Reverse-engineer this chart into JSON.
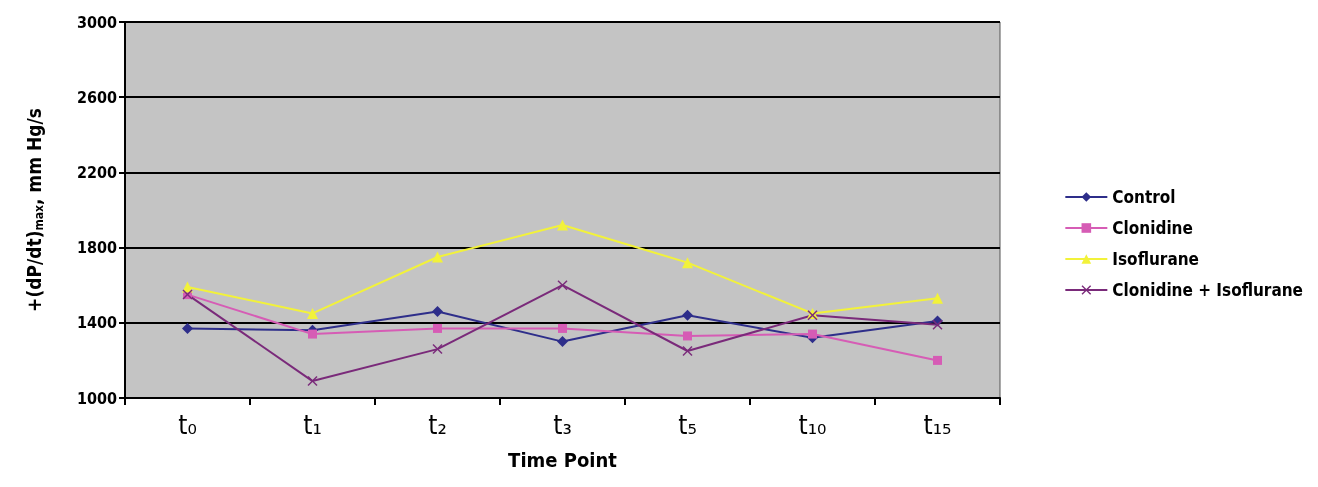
{
  "chart_data": {
    "type": "line",
    "xlabel": "Time Point",
    "ylabel": "+(dP/dt)$_{max}$, mm Hg/s",
    "categories": [
      "t₀",
      "t₁",
      "t₂",
      "t₃",
      "t₅",
      "t₁₀",
      "t₁₅"
    ],
    "series": [
      {
        "name": "Control",
        "color": "#2e2e8a",
        "marker": "diamond",
        "values": [
          1370,
          1360,
          1460,
          1300,
          1440,
          1320,
          1410
        ]
      },
      {
        "name": "Clonidine",
        "color": "#d65cb5",
        "marker": "square",
        "values": [
          1550,
          1340,
          1370,
          1370,
          1330,
          1340,
          1200
        ]
      },
      {
        "name": "Isoflurane",
        "color": "#f2f23a",
        "marker": "triangle",
        "values": [
          1590,
          1450,
          1750,
          1920,
          1720,
          1450,
          1530
        ]
      },
      {
        "name": "Clonidine + Isoflurane",
        "color": "#7a2a7a",
        "marker": "cross",
        "values": [
          1550,
          1090,
          1260,
          1600,
          1250,
          1440,
          1390
        ]
      }
    ],
    "ylim": [
      1000,
      3000
    ],
    "yticks": [
      1000,
      1400,
      1800,
      2200,
      2600,
      3000
    ],
    "grid": "y",
    "legend": "right",
    "line_style": "solid"
  }
}
